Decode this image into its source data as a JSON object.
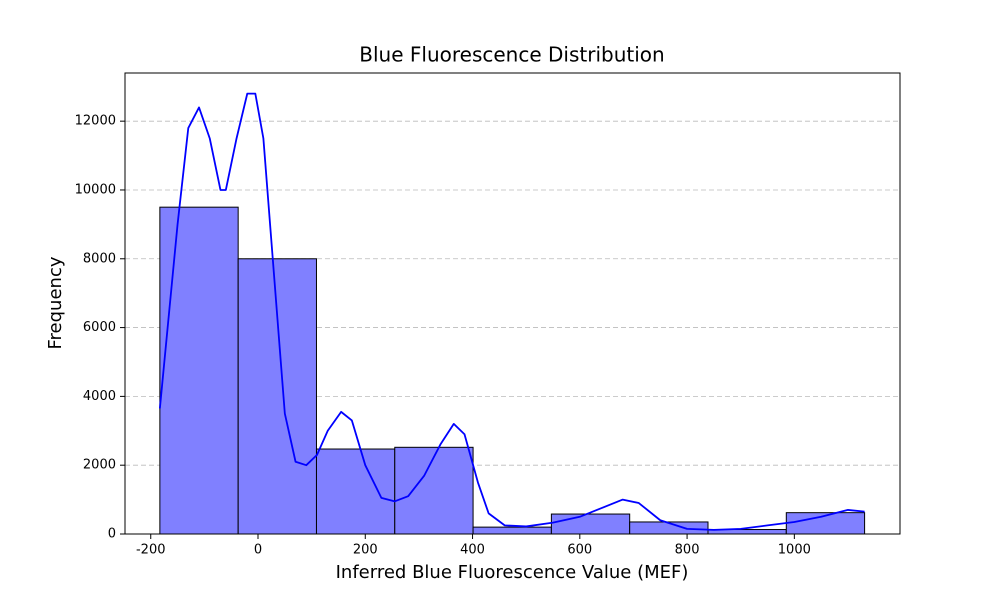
{
  "chart_data": {
    "type": "histogram",
    "title": "Blue Fluorescence Distribution",
    "xlabel": "Inferred Blue Fluorescence Value (MEF)",
    "ylabel": "Frequency",
    "bins": [
      -183,
      -37,
      109,
      255,
      401,
      547,
      693,
      839,
      985,
      1131
    ],
    "counts": [
      9500,
      8000,
      2470,
      2520,
      200,
      580,
      350,
      130,
      620
    ],
    "color": "#8080ff",
    "edgecolor": "#000000",
    "kde": {
      "color": "#0000ff",
      "x": [
        -183,
        -150,
        -130,
        -110,
        -90,
        -70,
        -60,
        -40,
        -20,
        -5,
        10,
        30,
        50,
        70,
        90,
        110,
        130,
        155,
        175,
        200,
        230,
        255,
        280,
        310,
        340,
        365,
        385,
        410,
        430,
        460,
        500,
        550,
        600,
        640,
        680,
        710,
        750,
        800,
        850,
        900,
        950,
        1000,
        1050,
        1100,
        1131
      ],
      "values": [
        3650,
        9000,
        11800,
        12400,
        11500,
        10000,
        10000,
        11500,
        12800,
        12800,
        11500,
        7500,
        3500,
        2100,
        2000,
        2300,
        3000,
        3550,
        3300,
        2000,
        1050,
        950,
        1100,
        1700,
        2600,
        3200,
        2900,
        1500,
        600,
        250,
        220,
        330,
        500,
        750,
        1000,
        900,
        400,
        150,
        120,
        150,
        250,
        350,
        500,
        700,
        650
      ]
    },
    "xlim": [
      -248,
      1197
    ],
    "ylim": [
      0,
      13400
    ],
    "xticks": [
      -200,
      0,
      200,
      400,
      600,
      800,
      1000
    ],
    "yticks": [
      0,
      2000,
      4000,
      6000,
      8000,
      10000,
      12000
    ],
    "grid": true
  }
}
